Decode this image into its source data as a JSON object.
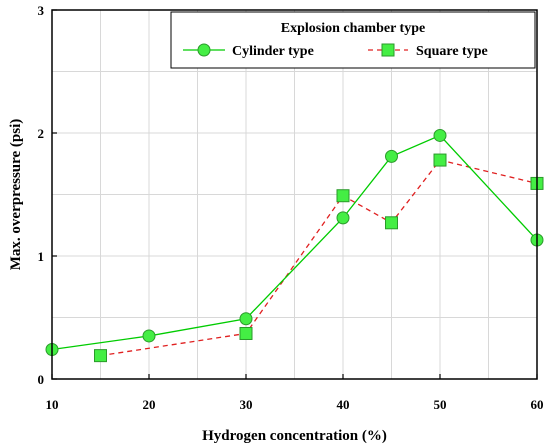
{
  "chart_data": {
    "type": "line",
    "xlabel": "Hydrogen concentration (%)",
    "ylabel": "Max. overpressure (psi)",
    "xlim": [
      10,
      60
    ],
    "ylim": [
      0,
      3
    ],
    "x_ticks": [
      "10",
      "20",
      "30",
      "40",
      "50",
      "60"
    ],
    "y_ticks": [
      "0",
      "1",
      "2",
      "3"
    ],
    "grid": true,
    "legend": {
      "title": "Explosion chamber type",
      "placement": "top-right"
    },
    "series": [
      {
        "name": "Cylinder type",
        "color": "#00cc00",
        "marker_color": "#44ee44",
        "line_style": "solid",
        "marker": "circle",
        "x": [
          10,
          20,
          30,
          40,
          45,
          50,
          60
        ],
        "y": [
          0.24,
          0.35,
          0.49,
          1.31,
          1.81,
          1.98,
          1.13
        ]
      },
      {
        "name": "Square type",
        "color": "#e02020",
        "marker_color": "#44ee44",
        "line_style": "dashed",
        "marker": "square",
        "x": [
          15,
          30,
          40,
          45,
          50,
          60
        ],
        "y": [
          0.19,
          0.37,
          1.49,
          1.27,
          1.78,
          1.59
        ]
      }
    ]
  }
}
